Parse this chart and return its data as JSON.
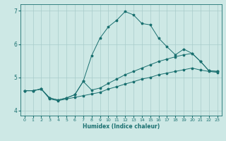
{
  "title": "",
  "xlabel": "Humidex (Indice chaleur)",
  "bg_color": "#cde8e5",
  "line_color": "#1a7070",
  "grid_color": "#a8ccca",
  "xlim": [
    -0.5,
    23.5
  ],
  "ylim": [
    3.85,
    7.2
  ],
  "yticks": [
    4,
    5,
    6,
    7
  ],
  "xticks": [
    0,
    1,
    2,
    3,
    4,
    5,
    6,
    7,
    8,
    9,
    10,
    11,
    12,
    13,
    14,
    15,
    16,
    17,
    18,
    19,
    20,
    21,
    22,
    23
  ],
  "line1_x": [
    0,
    1,
    2,
    3,
    4,
    5,
    6,
    7,
    8,
    9,
    10,
    11,
    12,
    13,
    14,
    15,
    16,
    17,
    18,
    19,
    20,
    21,
    22,
    23
  ],
  "line1_y": [
    4.6,
    4.6,
    4.65,
    4.35,
    4.3,
    4.35,
    4.4,
    4.45,
    4.5,
    4.55,
    4.65,
    4.72,
    4.8,
    4.87,
    4.95,
    5.0,
    5.08,
    5.13,
    5.18,
    5.23,
    5.28,
    5.22,
    5.18,
    5.15
  ],
  "line2_x": [
    0,
    1,
    2,
    3,
    4,
    5,
    6,
    7,
    8,
    9,
    10,
    11,
    12,
    13,
    14,
    15,
    16,
    17,
    18,
    19,
    20,
    21,
    22,
    23
  ],
  "line2_y": [
    4.6,
    4.6,
    4.65,
    4.38,
    4.32,
    4.38,
    4.48,
    4.88,
    5.65,
    6.18,
    6.52,
    6.72,
    6.98,
    6.88,
    6.62,
    6.58,
    6.18,
    5.92,
    5.68,
    5.85,
    5.72,
    5.48,
    5.2,
    5.18
  ],
  "line3_x": [
    0,
    1,
    2,
    3,
    4,
    5,
    6,
    7,
    8,
    9,
    10,
    11,
    12,
    13,
    14,
    15,
    16,
    17,
    18,
    19,
    20,
    21,
    22,
    23
  ],
  "line3_y": [
    4.6,
    4.6,
    4.65,
    4.38,
    4.32,
    4.38,
    4.48,
    4.88,
    4.62,
    4.68,
    4.82,
    4.95,
    5.08,
    5.18,
    5.28,
    5.38,
    5.48,
    5.55,
    5.62,
    5.68,
    5.72,
    5.48,
    5.2,
    5.18
  ]
}
